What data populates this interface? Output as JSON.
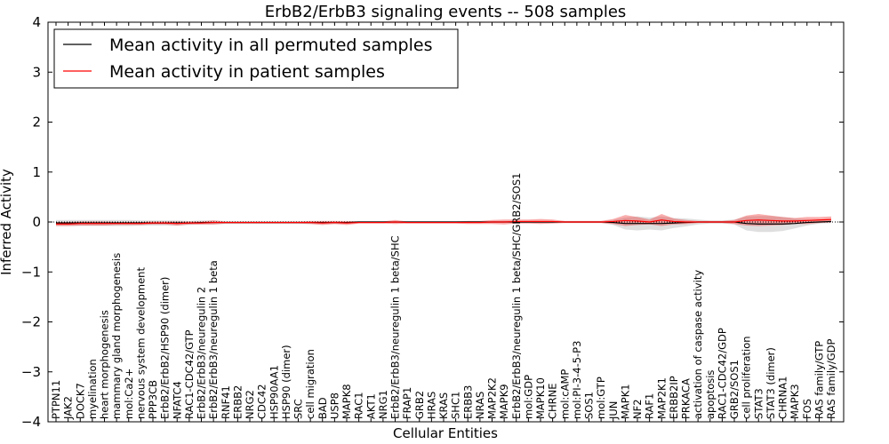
{
  "chart_data": {
    "type": "line",
    "title": "ErbB2/ErbB3 signaling events -- 508 samples",
    "xlabel": "Cellular Entities",
    "ylabel": "Inferred Activity",
    "ylim": [
      -4,
      4
    ],
    "yticks": [
      -4,
      -3,
      -2,
      -1,
      0,
      1,
      2,
      3,
      4
    ],
    "ytick_labels": [
      "−4",
      "−3",
      "−2",
      "−1",
      "0",
      "1",
      "2",
      "3",
      "4"
    ],
    "legend_position": "top-left",
    "categories": [
      "PTPN11",
      "JAK2",
      "DOCK7",
      "myelination",
      "heart morphogenesis",
      "mammary gland morphogenesis",
      "mol:Ca2+",
      "nervous system development",
      "PPP3CB",
      "ErbB2/ErbB2/HSP90 (dimer)",
      "NFATC4",
      "RAC1-CDC42/GTP",
      "ErbB2/ErbB3/neuregulin 2",
      "ErbB2/ErbB3/neuregulin 1 beta",
      "RNF41",
      "ERBB2",
      "NRG2",
      "CDC42",
      "HSP90AA1",
      "HSP90 (dimer)",
      "SRC",
      "cell migration",
      "BAD",
      "USP8",
      "MAPK8",
      "RAC1",
      "AKT1",
      "NRG1",
      "ErbB2/ErbB3/neuregulin 1 beta/SHC",
      "FRAP1",
      "GRB2",
      "HRAS",
      "KRAS",
      "SHC1",
      "ERBB3",
      "NRAS",
      "MAP2K2",
      "MAPK9",
      "ErbB2/ErbB3/neuregulin 1 beta/SHC/GRB2/SOS1",
      "mol:GDP",
      "MAPK10",
      "CHRNE",
      "mol:cAMP",
      "mol:PI-3-4-5-P3",
      "SOS1",
      "mol:GTP",
      "JUN",
      "MAPK1",
      "NF2",
      "RAF1",
      "MAP2K1",
      "ERBB2IP",
      "PRKACA",
      "activation of caspase activity",
      "apoptosis",
      "RAC1-CDC42/GDP",
      "GRB2/SOS1",
      "cell proliferation",
      "STAT3",
      "STAT3 (dimer)",
      "CHRNA1",
      "MAPK3",
      "FOS",
      "RAS family/GTP",
      "RAS family/GDP"
    ],
    "series": [
      {
        "name": "Mean activity in all permuted samples",
        "color": "#000000",
        "values": [
          -0.02,
          -0.02,
          -0.02,
          -0.02,
          -0.02,
          -0.02,
          -0.02,
          -0.02,
          -0.02,
          -0.02,
          -0.02,
          -0.02,
          -0.01,
          -0.01,
          -0.01,
          -0.01,
          -0.01,
          -0.01,
          -0.01,
          -0.01,
          -0.01,
          -0.01,
          -0.01,
          -0.01,
          -0.01,
          0.0,
          0.0,
          0.0,
          0.0,
          0.0,
          0.0,
          0.0,
          0.0,
          0.0,
          0.0,
          0.0,
          0.0,
          0.0,
          0.0,
          0.0,
          0.0,
          0.0,
          0.0,
          0.0,
          0.0,
          0.0,
          -0.01,
          -0.03,
          -0.03,
          -0.03,
          -0.03,
          -0.02,
          -0.01,
          0.0,
          0.0,
          0.0,
          0.0,
          -0.03,
          -0.04,
          -0.04,
          -0.04,
          -0.03,
          -0.01,
          0.0,
          0.01
        ],
        "band": [
          0.06,
          0.06,
          0.06,
          0.06,
          0.06,
          0.06,
          0.06,
          0.05,
          0.05,
          0.05,
          0.05,
          0.04,
          0.04,
          0.04,
          0.03,
          0.03,
          0.03,
          0.03,
          0.03,
          0.03,
          0.03,
          0.03,
          0.03,
          0.03,
          0.02,
          0.02,
          0.02,
          0.02,
          0.02,
          0.02,
          0.02,
          0.02,
          0.02,
          0.02,
          0.02,
          0.02,
          0.02,
          0.02,
          0.02,
          0.02,
          0.02,
          0.02,
          0.02,
          0.02,
          0.02,
          0.02,
          0.05,
          0.12,
          0.14,
          0.12,
          0.14,
          0.1,
          0.08,
          0.05,
          0.03,
          0.03,
          0.05,
          0.14,
          0.16,
          0.16,
          0.14,
          0.1,
          0.06,
          0.03,
          0.03
        ]
      },
      {
        "name": "Mean activity in patient samples",
        "color": "#ff0000",
        "values": [
          -0.04,
          -0.04,
          -0.03,
          -0.03,
          -0.03,
          -0.03,
          -0.03,
          -0.03,
          -0.02,
          -0.02,
          -0.03,
          -0.02,
          -0.02,
          -0.01,
          -0.01,
          -0.01,
          -0.01,
          -0.01,
          -0.01,
          -0.01,
          -0.01,
          -0.01,
          -0.02,
          -0.01,
          -0.02,
          -0.01,
          -0.01,
          -0.01,
          0.0,
          -0.01,
          -0.01,
          -0.01,
          -0.01,
          -0.01,
          -0.01,
          -0.01,
          0.0,
          0.0,
          0.01,
          0.01,
          0.01,
          0.01,
          0.0,
          0.0,
          0.0,
          0.0,
          0.01,
          0.03,
          0.02,
          0.0,
          0.04,
          0.01,
          0.0,
          0.0,
          0.0,
          0.0,
          0.0,
          0.03,
          0.04,
          0.03,
          0.02,
          0.02,
          0.03,
          0.04,
          0.05
        ],
        "band": [
          0.04,
          0.04,
          0.04,
          0.04,
          0.04,
          0.03,
          0.03,
          0.03,
          0.03,
          0.03,
          0.04,
          0.03,
          0.03,
          0.04,
          0.02,
          0.02,
          0.02,
          0.02,
          0.02,
          0.02,
          0.02,
          0.03,
          0.04,
          0.03,
          0.04,
          0.02,
          0.02,
          0.02,
          0.04,
          0.02,
          0.02,
          0.02,
          0.02,
          0.02,
          0.03,
          0.03,
          0.04,
          0.05,
          0.04,
          0.04,
          0.05,
          0.04,
          0.02,
          0.02,
          0.02,
          0.02,
          0.05,
          0.11,
          0.08,
          0.05,
          0.12,
          0.06,
          0.04,
          0.02,
          0.02,
          0.02,
          0.04,
          0.1,
          0.12,
          0.1,
          0.08,
          0.06,
          0.07,
          0.06,
          0.06
        ]
      }
    ],
    "zero_line": 0
  }
}
